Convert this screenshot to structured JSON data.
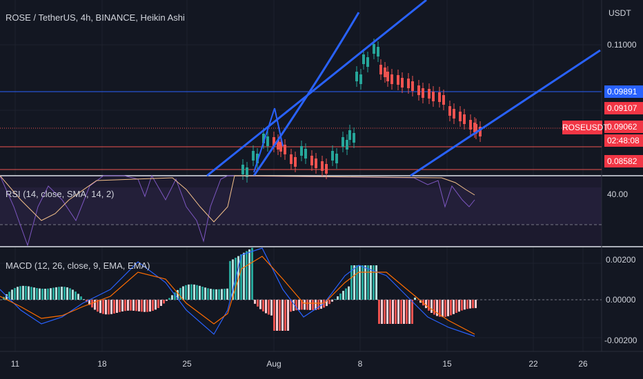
{
  "symbol_title": "ROSE / TetherUS, 4h, BINANCE, Heikin Ashi",
  "currency": "USDT",
  "price_axis": {
    "ticks": [
      "0.11000"
    ],
    "tags": [
      {
        "label": "0.09891",
        "bg": "#2962ff"
      },
      {
        "label": "0.09107",
        "bg": "#f23645"
      },
      {
        "label": "0.09062",
        "bg": "#f23645"
      },
      {
        "label": "02:48:08",
        "bg": "#f23645"
      },
      {
        "label": "0.08582",
        "bg": "#f23645"
      }
    ],
    "symbol_tag": "ROSEUSDT"
  },
  "rsi": {
    "title": "RSI (14, close, SMA, 14, 2)",
    "tick": "40.00"
  },
  "macd": {
    "title": "MACD (12, 26, close, 9, EMA, EMA)",
    "ticks": [
      "0.00200",
      "0.00000",
      "-0.00200"
    ]
  },
  "time_axis": [
    "11",
    "18",
    "25",
    "Aug",
    "8",
    "15",
    "22",
    "26"
  ],
  "colors": {
    "background": "#131722",
    "up": "#26a69a",
    "down": "#ef5350",
    "trendline": "#2962ff",
    "rsi_line": "#7e57c2",
    "rsi_ma": "#f5c28b",
    "macd_line": "#2962ff",
    "signal_line": "#ff6d00"
  }
}
